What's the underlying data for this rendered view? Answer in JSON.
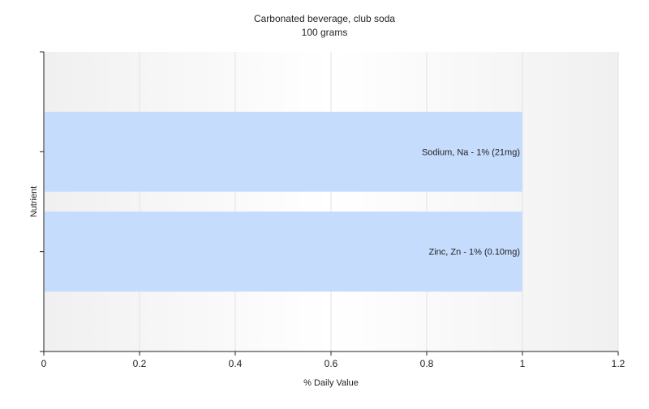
{
  "chart_data": {
    "type": "bar",
    "orientation": "horizontal",
    "title": "Carbonated beverage, club soda",
    "subtitle": "100 grams",
    "xlabel": "% Daily Value",
    "ylabel": "Nutrient",
    "xlim": [
      0,
      1.2
    ],
    "xticks": [
      "0",
      "0.2",
      "0.4",
      "0.6",
      "0.8",
      "1",
      "1.2"
    ],
    "xtick_values": [
      0,
      0.2,
      0.4,
      0.6,
      0.8,
      1,
      1.2
    ],
    "grid": true,
    "categories": [
      "Sodium, Na",
      "Zinc, Zn"
    ],
    "values": [
      1,
      1
    ],
    "data_labels": [
      "Sodium, Na - 1% (21mg)",
      "Zinc, Zn - 1% (0.10mg)"
    ],
    "bar_color": "#c5dcfd"
  }
}
